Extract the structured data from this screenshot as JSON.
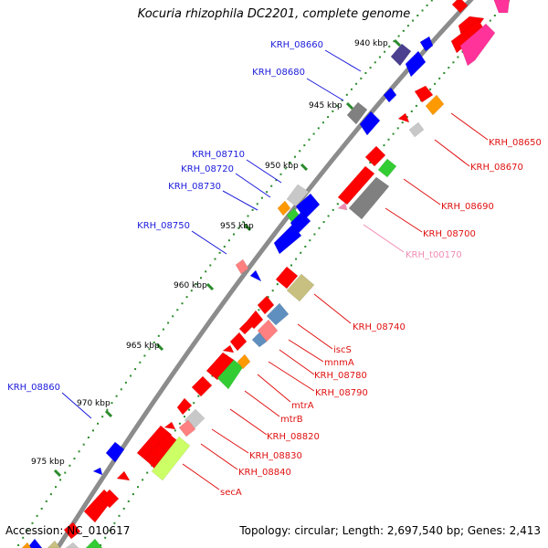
{
  "header": {
    "title": "Kocuria rhizophila DC2201, complete genome"
  },
  "footer": {
    "accession": "Accession: NC_010617",
    "topology": "Topology: circular; Length: 2,697,540 bp; Genes: 2,413"
  },
  "colors": {
    "backbone": "#8c8c8c",
    "tick": "#2a8a2a",
    "label_left": "#1a1adb",
    "label_right": "#e01010",
    "label_trna": "#f08cb4",
    "cds_red": "#ff0000",
    "cds_blue": "#0000ff",
    "cds_gray": "#808080",
    "cds_green": "#33cc33",
    "cds_lime": "#ccff66",
    "cds_orange": "#ff9900",
    "cds_khaki": "#c8c080",
    "cds_pink": "#ff3399",
    "cds_salmon": "#ff8080",
    "cds_steel": "#5f8fbf",
    "cds_purple": "#4b3f8f",
    "cds_lightgray": "#c8c8c8"
  },
  "scale_labels": [
    "940 kbp",
    "945 kbp",
    "950 kbp",
    "955 kbp",
    "960 kbp",
    "965 kbp",
    "970 kbp",
    "975 kbp"
  ],
  "gene_labels_left": [
    "KRH_08660",
    "KRH_08680",
    "KRH_08710",
    "KRH_08720",
    "KRH_08730",
    "KRH_08750",
    "KRH_08860"
  ],
  "gene_labels_right": [
    "KRH_08650",
    "KRH_08670",
    "KRH_08690",
    "KRH_08700",
    "KRH_t00170",
    "KRH_08740",
    "iscS",
    "mnmA",
    "KRH_08780",
    "KRH_08790",
    "mtrA",
    "mtrB",
    "KRH_08820",
    "KRH_08830",
    "KRH_08840",
    "secA"
  ]
}
